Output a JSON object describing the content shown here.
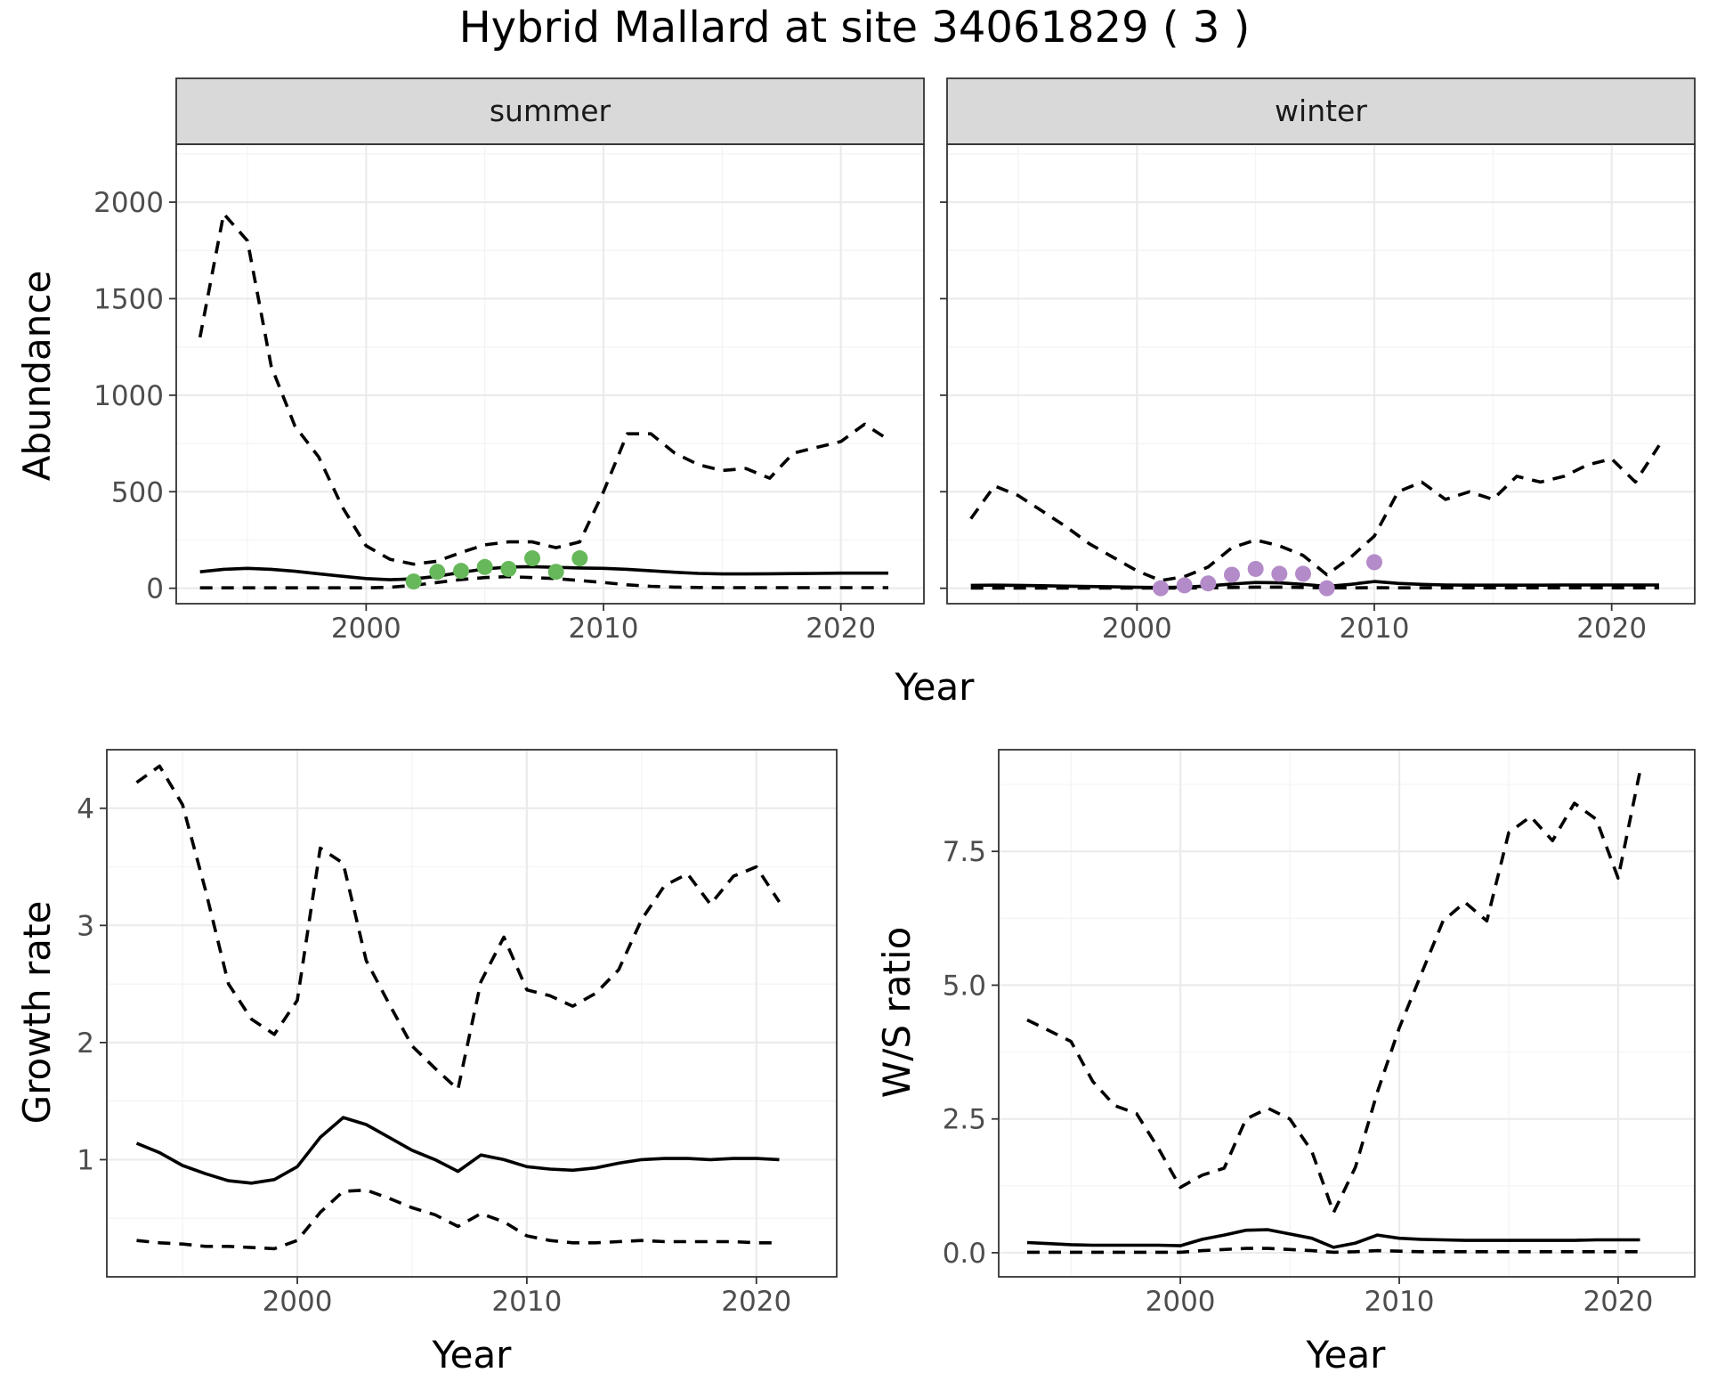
{
  "title": "Hybrid Mallard at site 34061829 ( 3 )",
  "colors": {
    "summer_points": "#66b85a",
    "winter_points": "#b48bc9",
    "strip": "#d9d9d9"
  },
  "chart_data": [
    {
      "id": "abundance_summer",
      "type": "line",
      "strip": "summer",
      "ylabel": "Abundance",
      "xlabel": "Year",
      "xlim": [
        1992,
        2023.5
      ],
      "ylim": [
        -80,
        2300
      ],
      "xticks": [
        2000,
        2010,
        2020
      ],
      "yticks": [
        0,
        500,
        1000,
        1500,
        2000
      ],
      "grid": true,
      "series": [
        {
          "role": "estimate",
          "style": "solid",
          "x": [
            1993,
            1994,
            1995,
            1996,
            1997,
            1998,
            1999,
            2000,
            2001,
            2002,
            2003,
            2004,
            2005,
            2006,
            2007,
            2008,
            2009,
            2010,
            2011,
            2012,
            2013,
            2014,
            2015,
            2016,
            2017,
            2018,
            2019,
            2020,
            2021,
            2022
          ],
          "y": [
            85,
            98,
            103,
            98,
            88,
            75,
            62,
            50,
            44,
            48,
            62,
            82,
            100,
            110,
            112,
            108,
            105,
            103,
            98,
            90,
            83,
            77,
            74,
            74,
            75,
            76,
            77,
            78,
            78,
            78
          ]
        },
        {
          "role": "upper",
          "style": "dashed",
          "x": [
            1993,
            1994,
            1995,
            1996,
            1997,
            1998,
            1999,
            2000,
            2001,
            2002,
            2003,
            2004,
            2005,
            2006,
            2007,
            2008,
            2009,
            2010,
            2011,
            2012,
            2013,
            2014,
            2015,
            2016,
            2017,
            2018,
            2019,
            2020,
            2021,
            2022
          ],
          "y": [
            1300,
            1940,
            1800,
            1150,
            840,
            680,
            420,
            220,
            150,
            125,
            140,
            185,
            225,
            240,
            240,
            210,
            240,
            500,
            800,
            800,
            700,
            640,
            610,
            620,
            570,
            700,
            730,
            760,
            850,
            770
          ]
        },
        {
          "role": "lower",
          "style": "dashed",
          "x": [
            1993,
            1994,
            1995,
            1996,
            1997,
            1998,
            1999,
            2000,
            2001,
            2002,
            2003,
            2004,
            2005,
            2006,
            2007,
            2008,
            2009,
            2010,
            2011,
            2012,
            2013,
            2014,
            2015,
            2016,
            2017,
            2018,
            2019,
            2020,
            2021,
            2022
          ],
          "y": [
            2,
            2,
            2,
            2,
            2,
            2,
            2,
            2,
            5,
            15,
            30,
            45,
            55,
            60,
            55,
            50,
            40,
            30,
            18,
            10,
            6,
            4,
            3,
            3,
            3,
            3,
            3,
            3,
            3,
            3
          ]
        }
      ],
      "points": {
        "x": [
          2002,
          2003,
          2004,
          2005,
          2006,
          2007,
          2008,
          2009
        ],
        "y": [
          35,
          85,
          90,
          110,
          100,
          155,
          85,
          155
        ]
      }
    },
    {
      "id": "abundance_winter",
      "type": "line",
      "strip": "winter",
      "ylabel": "",
      "xlabel": "Year",
      "xlim": [
        1992,
        2023.5
      ],
      "ylim": [
        -80,
        2300
      ],
      "xticks": [
        2000,
        2010,
        2020
      ],
      "yticks": [
        0,
        500,
        1000,
        1500,
        2000
      ],
      "grid": true,
      "series": [
        {
          "role": "estimate",
          "style": "solid",
          "x": [
            1993,
            1994,
            1995,
            1996,
            1997,
            1998,
            1999,
            2000,
            2001,
            2002,
            2003,
            2004,
            2005,
            2006,
            2007,
            2008,
            2009,
            2010,
            2011,
            2012,
            2013,
            2014,
            2015,
            2016,
            2017,
            2018,
            2019,
            2020,
            2021,
            2022
          ],
          "y": [
            15,
            16,
            15,
            13,
            11,
            9,
            7,
            5,
            4,
            6,
            12,
            22,
            30,
            28,
            20,
            10,
            20,
            35,
            25,
            20,
            17,
            16,
            16,
            16,
            16,
            17,
            17,
            17,
            17,
            17
          ]
        },
        {
          "role": "upper",
          "style": "dashed",
          "x": [
            1993,
            1994,
            1995,
            1996,
            1997,
            1998,
            1999,
            2000,
            2001,
            2002,
            2003,
            2004,
            2005,
            2006,
            2007,
            2008,
            2009,
            2010,
            2011,
            2012,
            2013,
            2014,
            2015,
            2016,
            2017,
            2018,
            2019,
            2020,
            2021,
            2022
          ],
          "y": [
            360,
            530,
            480,
            400,
            320,
            230,
            160,
            90,
            40,
            60,
            110,
            210,
            250,
            220,
            170,
            70,
            160,
            270,
            500,
            550,
            460,
            500,
            460,
            580,
            550,
            580,
            640,
            670,
            550,
            740
          ]
        },
        {
          "role": "lower",
          "style": "dashed",
          "x": [
            1993,
            1994,
            1995,
            1996,
            1997,
            1998,
            1999,
            2000,
            2001,
            2002,
            2003,
            2004,
            2005,
            2006,
            2007,
            2008,
            2009,
            2010,
            2011,
            2012,
            2013,
            2014,
            2015,
            2016,
            2017,
            2018,
            2019,
            2020,
            2021,
            2022
          ],
          "y": [
            1,
            1,
            1,
            1,
            1,
            1,
            1,
            1,
            1,
            1,
            2,
            4,
            6,
            6,
            4,
            2,
            2,
            3,
            2,
            2,
            2,
            2,
            2,
            2,
            2,
            2,
            2,
            2,
            2,
            2
          ]
        }
      ],
      "points": {
        "x": [
          2001,
          2002,
          2003,
          2004,
          2005,
          2006,
          2007,
          2008,
          2010
        ],
        "y": [
          0,
          15,
          25,
          70,
          100,
          75,
          75,
          0,
          135
        ]
      }
    },
    {
      "id": "growth_rate",
      "type": "line",
      "ylabel": "Growth rate",
      "xlabel": "Year",
      "xlim": [
        1991.7,
        2023.5
      ],
      "ylim": [
        0,
        4.5
      ],
      "xticks": [
        2000,
        2010,
        2020
      ],
      "yticks": [
        1,
        2,
        3,
        4
      ],
      "grid": true,
      "series": [
        {
          "role": "estimate",
          "style": "solid",
          "x": [
            1993,
            1994,
            1995,
            1996,
            1997,
            1998,
            1999,
            2000,
            2001,
            2002,
            2003,
            2004,
            2005,
            2006,
            2007,
            2008,
            2009,
            2010,
            2011,
            2012,
            2013,
            2014,
            2015,
            2016,
            2017,
            2018,
            2019,
            2020,
            2021
          ],
          "y": [
            1.14,
            1.06,
            0.95,
            0.88,
            0.82,
            0.8,
            0.83,
            0.94,
            1.19,
            1.36,
            1.3,
            1.19,
            1.08,
            1.0,
            0.9,
            1.04,
            1.0,
            0.94,
            0.92,
            0.91,
            0.93,
            0.97,
            1.0,
            1.01,
            1.01,
            1.0,
            1.01,
            1.01,
            1.0
          ]
        },
        {
          "role": "upper",
          "style": "dashed",
          "x": [
            1993,
            1994,
            1995,
            1996,
            1997,
            1998,
            1999,
            2000,
            2001,
            2002,
            2003,
            2004,
            2005,
            2006,
            2007,
            2008,
            2009,
            2010,
            2011,
            2012,
            2013,
            2014,
            2015,
            2016,
            2017,
            2018,
            2019,
            2020,
            2021
          ],
          "y": [
            4.22,
            4.36,
            4.03,
            3.3,
            2.5,
            2.2,
            2.07,
            2.36,
            3.66,
            3.53,
            2.7,
            2.33,
            1.97,
            1.78,
            1.6,
            2.52,
            2.9,
            2.45,
            2.4,
            2.31,
            2.42,
            2.62,
            3.05,
            3.34,
            3.44,
            3.18,
            3.42,
            3.5,
            3.2
          ]
        },
        {
          "role": "lower",
          "style": "dashed",
          "x": [
            1993,
            1994,
            1995,
            1996,
            1997,
            1998,
            1999,
            2000,
            2001,
            2002,
            2003,
            2004,
            2005,
            2006,
            2007,
            2008,
            2009,
            2010,
            2011,
            2012,
            2013,
            2014,
            2015,
            2016,
            2017,
            2018,
            2019,
            2020,
            2021
          ],
          "y": [
            0.31,
            0.29,
            0.28,
            0.26,
            0.26,
            0.25,
            0.24,
            0.31,
            0.55,
            0.73,
            0.74,
            0.67,
            0.59,
            0.53,
            0.43,
            0.54,
            0.47,
            0.35,
            0.31,
            0.29,
            0.29,
            0.3,
            0.31,
            0.3,
            0.3,
            0.3,
            0.3,
            0.29,
            0.29
          ]
        }
      ]
    },
    {
      "id": "ws_ratio",
      "type": "line",
      "ylabel": "W/S ratio",
      "xlabel": "Year",
      "xlim": [
        1991.7,
        2023.5
      ],
      "ylim": [
        -0.45,
        9.4
      ],
      "xticks": [
        2000,
        2010,
        2020
      ],
      "yticks": [
        0.0,
        2.5,
        5.0,
        7.5
      ],
      "ytick_labels": [
        "0.0",
        "2.5",
        "5.0",
        "7.5"
      ],
      "grid": true,
      "series": [
        {
          "role": "estimate",
          "style": "solid",
          "x": [
            1993,
            1994,
            1995,
            1996,
            1997,
            1998,
            1999,
            2000,
            2001,
            2002,
            2003,
            2004,
            2005,
            2006,
            2007,
            2008,
            2009,
            2010,
            2011,
            2012,
            2013,
            2014,
            2015,
            2016,
            2017,
            2018,
            2019,
            2020,
            2021
          ],
          "y": [
            0.19,
            0.17,
            0.15,
            0.14,
            0.14,
            0.14,
            0.14,
            0.13,
            0.25,
            0.33,
            0.42,
            0.43,
            0.35,
            0.27,
            0.1,
            0.18,
            0.33,
            0.27,
            0.25,
            0.24,
            0.23,
            0.23,
            0.23,
            0.23,
            0.23,
            0.23,
            0.24,
            0.24,
            0.24
          ]
        },
        {
          "role": "upper",
          "style": "dashed",
          "x": [
            1993,
            1994,
            1995,
            1996,
            1997,
            1998,
            1999,
            2000,
            2001,
            2002,
            2003,
            2004,
            2005,
            2006,
            2007,
            2008,
            2009,
            2010,
            2011,
            2012,
            2013,
            2014,
            2015,
            2016,
            2017,
            2018,
            2019,
            2020,
            2021
          ],
          "y": [
            4.35,
            4.15,
            3.95,
            3.2,
            2.75,
            2.6,
            1.95,
            1.22,
            1.45,
            1.58,
            2.5,
            2.7,
            2.5,
            1.9,
            0.75,
            1.6,
            3.0,
            4.2,
            5.2,
            6.2,
            6.55,
            6.2,
            7.85,
            8.15,
            7.7,
            8.4,
            8.1,
            7.0,
            9.0
          ]
        },
        {
          "role": "lower",
          "style": "dashed",
          "x": [
            1993,
            1994,
            1995,
            1996,
            1997,
            1998,
            1999,
            2000,
            2001,
            2002,
            2003,
            2004,
            2005,
            2006,
            2007,
            2008,
            2009,
            2010,
            2011,
            2012,
            2013,
            2014,
            2015,
            2016,
            2017,
            2018,
            2019,
            2020,
            2021
          ],
          "y": [
            0.01,
            0.01,
            0.01,
            0.01,
            0.01,
            0.01,
            0.01,
            0.01,
            0.04,
            0.06,
            0.08,
            0.08,
            0.06,
            0.04,
            0.01,
            0.02,
            0.04,
            0.03,
            0.02,
            0.02,
            0.02,
            0.02,
            0.02,
            0.02,
            0.02,
            0.02,
            0.02,
            0.02,
            0.02
          ]
        }
      ]
    }
  ]
}
